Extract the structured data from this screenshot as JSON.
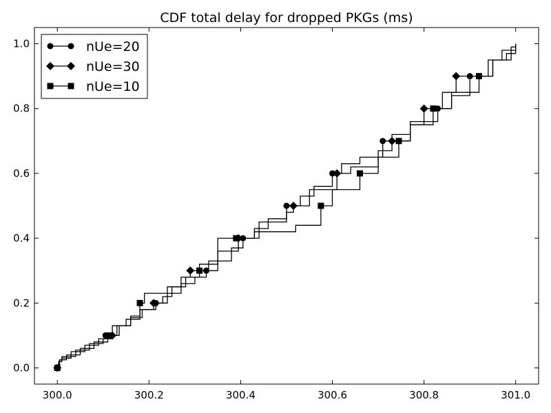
{
  "chart_data": {
    "type": "line",
    "title": "CDF total delay for dropped PKGs (ms)",
    "xlabel": "",
    "ylabel": "",
    "xlim": [
      299.95,
      301.05
    ],
    "ylim": [
      -0.05,
      1.05
    ],
    "xticks": [
      300.0,
      300.2,
      300.4,
      300.6,
      300.8,
      301.0
    ],
    "xtick_labels": [
      "300.0",
      "300.2",
      "300.4",
      "300.6",
      "300.8",
      "301.0"
    ],
    "yticks": [
      0.0,
      0.2,
      0.4,
      0.6,
      0.8,
      1.0
    ],
    "ytick_labels": [
      "0.0",
      "0.2",
      "0.4",
      "0.6",
      "0.8",
      "1.0"
    ],
    "grid": false,
    "legend_position": "top-left",
    "line_color": "#000000",
    "series": [
      {
        "name": "nUe=20",
        "marker": "circle",
        "curve": [
          [
            300.0,
            0.0
          ],
          [
            300.003,
            0.02
          ],
          [
            300.01,
            0.03
          ],
          [
            300.03,
            0.05
          ],
          [
            300.06,
            0.07
          ],
          [
            300.09,
            0.09
          ],
          [
            300.105,
            0.1
          ],
          [
            300.12,
            0.13
          ],
          [
            300.15,
            0.15
          ],
          [
            300.18,
            0.18
          ],
          [
            300.215,
            0.2
          ],
          [
            300.24,
            0.23
          ],
          [
            300.27,
            0.26
          ],
          [
            300.3,
            0.28
          ],
          [
            300.325,
            0.3
          ],
          [
            300.35,
            0.33
          ],
          [
            300.38,
            0.37
          ],
          [
            300.405,
            0.4
          ],
          [
            300.43,
            0.43
          ],
          [
            300.46,
            0.46
          ],
          [
            300.5,
            0.5
          ],
          [
            300.53,
            0.53
          ],
          [
            300.56,
            0.56
          ],
          [
            300.6,
            0.6
          ],
          [
            300.62,
            0.63
          ],
          [
            300.66,
            0.65
          ],
          [
            300.71,
            0.7
          ],
          [
            300.73,
            0.72
          ],
          [
            300.77,
            0.76
          ],
          [
            300.83,
            0.8
          ],
          [
            300.86,
            0.84
          ],
          [
            300.9,
            0.9
          ],
          [
            300.94,
            0.95
          ],
          [
            300.97,
            0.98
          ],
          [
            301.0,
            1.0
          ]
        ],
        "marker_points": [
          [
            300.0,
            0.0
          ],
          [
            300.105,
            0.1
          ],
          [
            300.215,
            0.2
          ],
          [
            300.325,
            0.3
          ],
          [
            300.405,
            0.4
          ],
          [
            300.5,
            0.5
          ],
          [
            300.6,
            0.6
          ],
          [
            300.71,
            0.7
          ],
          [
            300.83,
            0.8
          ],
          [
            300.9,
            0.9
          ]
        ]
      },
      {
        "name": "nUe=30",
        "marker": "diamond",
        "curve": [
          [
            300.0,
            0.0
          ],
          [
            300.003,
            0.02
          ],
          [
            300.01,
            0.035
          ],
          [
            300.04,
            0.055
          ],
          [
            300.07,
            0.075
          ],
          [
            300.1,
            0.09
          ],
          [
            300.12,
            0.1
          ],
          [
            300.135,
            0.13
          ],
          [
            300.16,
            0.155
          ],
          [
            300.185,
            0.18
          ],
          [
            300.21,
            0.2
          ],
          [
            300.23,
            0.22
          ],
          [
            300.25,
            0.25
          ],
          [
            300.27,
            0.28
          ],
          [
            300.29,
            0.3
          ],
          [
            300.31,
            0.32
          ],
          [
            300.35,
            0.36
          ],
          [
            300.395,
            0.4
          ],
          [
            300.44,
            0.45
          ],
          [
            300.5,
            0.48
          ],
          [
            300.515,
            0.5
          ],
          [
            300.55,
            0.55
          ],
          [
            300.61,
            0.6
          ],
          [
            300.64,
            0.62
          ],
          [
            300.7,
            0.67
          ],
          [
            300.73,
            0.7
          ],
          [
            300.77,
            0.75
          ],
          [
            300.8,
            0.8
          ],
          [
            300.84,
            0.85
          ],
          [
            300.87,
            0.9
          ],
          [
            300.95,
            0.95
          ],
          [
            300.98,
            0.97
          ],
          [
            301.0,
            1.0
          ]
        ],
        "marker_points": [
          [
            300.0,
            0.0
          ],
          [
            300.12,
            0.1
          ],
          [
            300.21,
            0.2
          ],
          [
            300.29,
            0.3
          ],
          [
            300.395,
            0.4
          ],
          [
            300.515,
            0.5
          ],
          [
            300.61,
            0.6
          ],
          [
            300.73,
            0.7
          ],
          [
            300.8,
            0.8
          ],
          [
            300.87,
            0.9
          ]
        ]
      },
      {
        "name": "nUe=10",
        "marker": "square",
        "curve": [
          [
            300.0,
            0.0
          ],
          [
            300.005,
            0.025
          ],
          [
            300.02,
            0.04
          ],
          [
            300.05,
            0.06
          ],
          [
            300.08,
            0.08
          ],
          [
            300.11,
            0.1
          ],
          [
            300.13,
            0.13
          ],
          [
            300.16,
            0.16
          ],
          [
            300.18,
            0.2
          ],
          [
            300.19,
            0.23
          ],
          [
            300.24,
            0.25
          ],
          [
            300.28,
            0.28
          ],
          [
            300.31,
            0.3
          ],
          [
            300.33,
            0.33
          ],
          [
            300.35,
            0.4
          ],
          [
            300.39,
            0.4
          ],
          [
            300.43,
            0.42
          ],
          [
            300.52,
            0.44
          ],
          [
            300.575,
            0.5
          ],
          [
            300.6,
            0.55
          ],
          [
            300.66,
            0.6
          ],
          [
            300.7,
            0.65
          ],
          [
            300.745,
            0.7
          ],
          [
            300.77,
            0.75
          ],
          [
            300.82,
            0.8
          ],
          [
            300.86,
            0.85
          ],
          [
            300.92,
            0.9
          ],
          [
            300.95,
            0.95
          ],
          [
            300.99,
            0.99
          ],
          [
            301.0,
            1.0
          ]
        ],
        "marker_points": [
          [
            300.0,
            0.0
          ],
          [
            300.11,
            0.1
          ],
          [
            300.18,
            0.2
          ],
          [
            300.31,
            0.3
          ],
          [
            300.39,
            0.4
          ],
          [
            300.575,
            0.5
          ],
          [
            300.66,
            0.6
          ],
          [
            300.745,
            0.7
          ],
          [
            300.82,
            0.8
          ],
          [
            300.92,
            0.9
          ]
        ]
      }
    ]
  }
}
